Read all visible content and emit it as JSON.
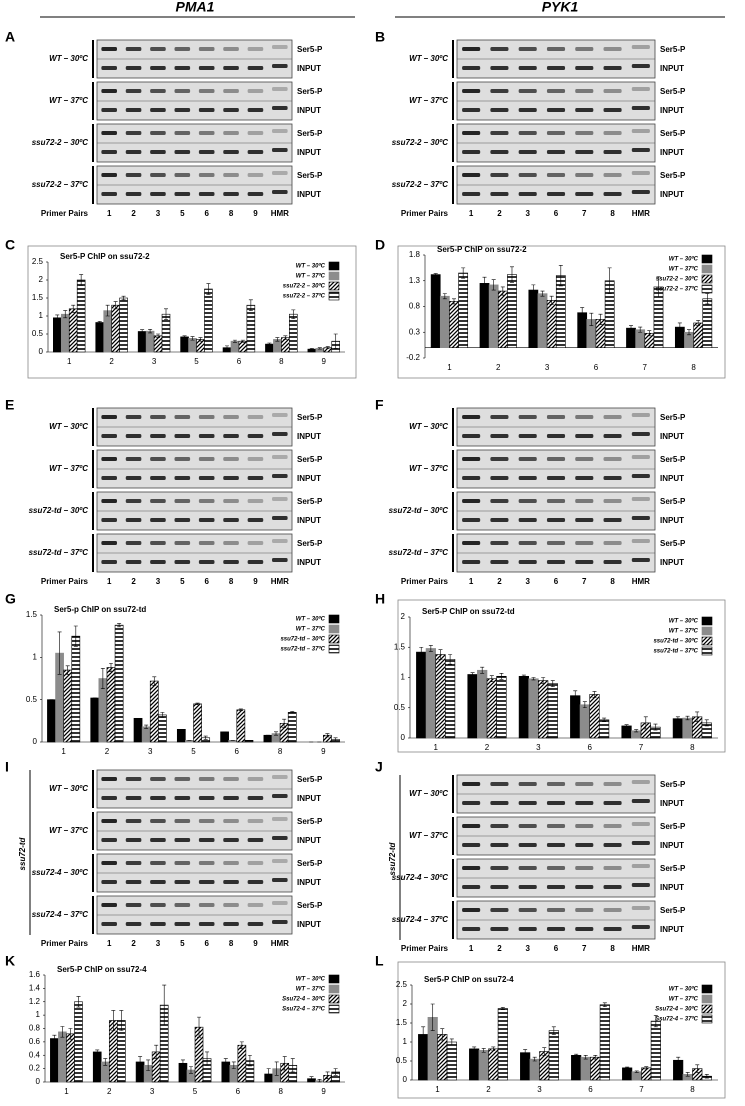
{
  "headers": [
    "PMA1",
    "PYK1"
  ],
  "gels": [
    {
      "letter": "A",
      "primer_label": "Primer Pairs",
      "lanes": [
        "1",
        "2",
        "3",
        "5",
        "6",
        "8",
        "9",
        "HMR"
      ],
      "blocks": [
        {
          "strain": "WT – 30ºC",
          "rows": [
            "Ser5-P",
            "INPUT"
          ]
        },
        {
          "strain": "WT – 37ºC",
          "rows": [
            "Ser5-P",
            "INPUT"
          ]
        },
        {
          "strain": "ssu72-2 – 30ºC",
          "rows": [
            "Ser5-P",
            "INPUT"
          ]
        },
        {
          "strain": "ssu72-2 – 37ºC",
          "rows": [
            "Ser5-P",
            "INPUT"
          ]
        }
      ]
    },
    {
      "letter": "B",
      "primer_label": "Primer Pairs",
      "lanes": [
        "1",
        "2",
        "3",
        "6",
        "7",
        "8",
        "HMR"
      ],
      "blocks": [
        {
          "strain": "WT – 30ºC",
          "rows": [
            "Ser5-P",
            "INPUT"
          ]
        },
        {
          "strain": "WT – 37ºC",
          "rows": [
            "Ser5-P",
            "INPUT"
          ]
        },
        {
          "strain": "ssu72-2 – 30ºC",
          "rows": [
            "Ser5-P",
            "INPUT"
          ]
        },
        {
          "strain": "ssu72-2 – 37ºC",
          "rows": [
            "Ser5-P",
            "INPUT"
          ]
        }
      ]
    },
    {
      "letter": "E",
      "primer_label": "Primer Pairs",
      "lanes": [
        "1",
        "2",
        "3",
        "5",
        "6",
        "8",
        "9",
        "HMR"
      ],
      "blocks": [
        {
          "strain": "WT – 30ºC",
          "rows": [
            "Ser5-P",
            "INPUT"
          ]
        },
        {
          "strain": "WT – 37ºC",
          "rows": [
            "Ser5-P",
            "INPUT"
          ]
        },
        {
          "strain": "ssu72-td – 30ºC",
          "rows": [
            "Ser5-P",
            "INPUT"
          ]
        },
        {
          "strain": "ssu72-td – 37ºC",
          "rows": [
            "Ser5-P",
            "INPUT"
          ]
        }
      ]
    },
    {
      "letter": "F",
      "primer_label": "Primer Pairs",
      "lanes": [
        "1",
        "2",
        "3",
        "6",
        "7",
        "8",
        "HMR"
      ],
      "blocks": [
        {
          "strain": "WT – 30ºC",
          "rows": [
            "Ser5-P",
            "INPUT"
          ]
        },
        {
          "strain": "WT – 37ºC",
          "rows": [
            "Ser5-P",
            "INPUT"
          ]
        },
        {
          "strain": "ssu72-td – 30ºC",
          "rows": [
            "Ser5-P",
            "INPUT"
          ]
        },
        {
          "strain": "ssu72-td – 37ºC",
          "rows": [
            "Ser5-P",
            "INPUT"
          ]
        }
      ]
    },
    {
      "letter": "I",
      "side_label": "ssu72-td",
      "primer_label": "Primer Pairs",
      "lanes": [
        "1",
        "2",
        "3",
        "5",
        "6",
        "8",
        "9",
        "HMR"
      ],
      "blocks": [
        {
          "strain": "WT – 30ºC",
          "rows": [
            "Ser5-P",
            "INPUT"
          ]
        },
        {
          "strain": "WT – 37ºC",
          "rows": [
            "Ser5-P",
            "INPUT"
          ]
        },
        {
          "strain": "ssu72-4 – 30ºC",
          "rows": [
            "Ser5-P",
            "INPUT"
          ]
        },
        {
          "strain": "ssu72-4 – 37ºC",
          "rows": [
            "Ser5-P",
            "INPUT"
          ]
        }
      ]
    },
    {
      "letter": "J",
      "side_label": "ssu72-td",
      "primer_label": "Primer Pairs",
      "lanes": [
        "1",
        "2",
        "3",
        "6",
        "7",
        "8",
        "HMR"
      ],
      "blocks": [
        {
          "strain": "WT – 30ºC",
          "rows": [
            "Ser5-P",
            "INPUT"
          ]
        },
        {
          "strain": "WT – 37ºC",
          "rows": [
            "Ser5-P",
            "INPUT"
          ]
        },
        {
          "strain": "ssu72-4 – 30ºC",
          "rows": [
            "Ser5-P",
            "INPUT"
          ]
        },
        {
          "strain": "ssu72-4 – 37ºC",
          "rows": [
            "Ser5-P",
            "INPUT"
          ]
        }
      ]
    }
  ],
  "chart_data": [
    {
      "type": "bar",
      "panel": "C",
      "title": "Ser5-P ChIP on ssu72-2",
      "categories": [
        "1",
        "2",
        "3",
        "5",
        "6",
        "8",
        "9"
      ],
      "ylim": [
        0,
        2.5
      ],
      "yticks": [
        0,
        0.5,
        1,
        1.5,
        2,
        2.5
      ],
      "series": [
        {
          "name": "WT – 30ºC",
          "color": "#000000",
          "values": [
            0.95,
            0.82,
            0.57,
            0.42,
            0.12,
            0.22,
            0.08
          ],
          "errors": [
            0.08,
            0.03,
            0.05,
            0.03,
            0.05,
            0.03,
            0.02
          ]
        },
        {
          "name": "WT – 37ºC",
          "color": "#8c8c8c",
          "values": [
            1.05,
            1.15,
            0.58,
            0.38,
            0.3,
            0.35,
            0.1
          ],
          "errors": [
            0.1,
            0.15,
            0.05,
            0.05,
            0.03,
            0.05,
            0.02
          ]
        },
        {
          "name": "ssu72-2 – 30ºC",
          "color": "#000000",
          "pattern": "diagonal",
          "values": [
            1.2,
            1.3,
            0.45,
            0.35,
            0.3,
            0.4,
            0.12
          ],
          "errors": [
            0.1,
            0.1,
            0.05,
            0.05,
            0.03,
            0.05,
            0.03
          ]
        },
        {
          "name": "ssu72-2 – 37ºC",
          "color": "#000000",
          "pattern": "horizontal",
          "values": [
            2.0,
            1.5,
            1.05,
            1.75,
            1.3,
            1.05,
            0.3
          ],
          "errors": [
            0.15,
            0.05,
            0.15,
            0.15,
            0.15,
            0.12,
            0.2
          ]
        }
      ]
    },
    {
      "type": "bar",
      "panel": "D",
      "title": "Ser5-P ChIP on ssu72-2",
      "categories": [
        "1",
        "2",
        "3",
        "6",
        "7",
        "8"
      ],
      "ylim": [
        -0.2,
        1.8
      ],
      "yticks": [
        -0.2,
        0.3,
        0.8,
        1.3,
        1.8
      ],
      "series": [
        {
          "name": "WT – 30ºC",
          "color": "#000000",
          "values": [
            1.42,
            1.25,
            1.12,
            0.68,
            0.38,
            0.4
          ],
          "errors": [
            0.02,
            0.12,
            0.1,
            0.1,
            0.05,
            0.08
          ]
        },
        {
          "name": "WT – 37ºC",
          "color": "#8c8c8c",
          "values": [
            1.0,
            1.22,
            1.05,
            0.55,
            0.35,
            0.3
          ],
          "errors": [
            0.05,
            0.1,
            0.05,
            0.12,
            0.05,
            0.05
          ]
        },
        {
          "name": "ssu72-2 – 30ºC",
          "color": "#000000",
          "pattern": "diagonal",
          "values": [
            0.9,
            1.1,
            0.92,
            0.55,
            0.28,
            0.48
          ],
          "errors": [
            0.05,
            0.08,
            0.08,
            0.1,
            0.05,
            0.05
          ]
        },
        {
          "name": "ssu72-2 – 37ºC",
          "color": "#000000",
          "pattern": "horizontal",
          "values": [
            1.45,
            1.42,
            1.4,
            1.3,
            1.18,
            0.95
          ],
          "errors": [
            0.1,
            0.15,
            0.2,
            0.25,
            0.2,
            0.1
          ]
        }
      ]
    },
    {
      "type": "bar",
      "panel": "G",
      "title": "Ser5-p ChIP on ssu72-td",
      "categories": [
        "1",
        "2",
        "3",
        "5",
        "6",
        "8",
        "9"
      ],
      "ylim": [
        0,
        1.5
      ],
      "yticks": [
        0,
        0.5,
        1,
        1.5
      ],
      "series": [
        {
          "name": "WT – 30ºC",
          "color": "#000000",
          "values": [
            0.5,
            0.52,
            0.28,
            0.15,
            0.12,
            0.08,
            0
          ],
          "errors": [
            0,
            0,
            0,
            0,
            0,
            0,
            0
          ]
        },
        {
          "name": "WT – 37ºC",
          "color": "#8c8c8c",
          "values": [
            1.05,
            0.75,
            0.18,
            0.02,
            0.02,
            0.1,
            0
          ],
          "errors": [
            0.25,
            0.12,
            0.02,
            0,
            0,
            0.02,
            0
          ]
        },
        {
          "name": "ssu72-td – 30ºC",
          "color": "#000000",
          "pattern": "diagonal",
          "values": [
            0.85,
            0.88,
            0.72,
            0.45,
            0.38,
            0.22,
            0.08
          ],
          "errors": [
            0.05,
            0.05,
            0.05,
            0.01,
            0.01,
            0.05,
            0.02
          ]
        },
        {
          "name": "ssu72-td – 37ºC",
          "color": "#000000",
          "pattern": "horizontal",
          "values": [
            1.25,
            1.38,
            0.32,
            0.05,
            0.02,
            0.35,
            0.03
          ],
          "errors": [
            0.12,
            0.02,
            0.03,
            0.02,
            0,
            0.01,
            0.02
          ]
        }
      ]
    },
    {
      "type": "bar",
      "panel": "H",
      "title": "Ser5-P ChIP on ssu72-td",
      "categories": [
        "1",
        "2",
        "3",
        "6",
        "7",
        "8"
      ],
      "ylim": [
        0,
        2
      ],
      "yticks": [
        0,
        0.5,
        1,
        1.5,
        2
      ],
      "series": [
        {
          "name": "WT – 30ºC",
          "color": "#000000",
          "values": [
            1.42,
            1.05,
            1.02,
            0.7,
            0.2,
            0.32
          ],
          "errors": [
            0.08,
            0.03,
            0.02,
            0.08,
            0.02,
            0.03
          ]
        },
        {
          "name": "WT – 37ºC",
          "color": "#8c8c8c",
          "values": [
            1.48,
            1.12,
            0.98,
            0.55,
            0.12,
            0.33
          ],
          "errors": [
            0.05,
            0.05,
            0.02,
            0.05,
            0.02,
            0.03
          ]
        },
        {
          "name": "ssu72-td – 30ºC",
          "color": "#000000",
          "pattern": "diagonal",
          "values": [
            1.38,
            0.98,
            0.95,
            0.72,
            0.25,
            0.35
          ],
          "errors": [
            0.08,
            0.05,
            0.05,
            0.05,
            0.1,
            0.08
          ]
        },
        {
          "name": "ssu72-td – 37ºC",
          "color": "#000000",
          "pattern": "horizontal",
          "values": [
            1.3,
            1.02,
            0.9,
            0.3,
            0.18,
            0.25
          ],
          "errors": [
            0.08,
            0.05,
            0.05,
            0.03,
            0.05,
            0.05
          ]
        }
      ]
    },
    {
      "type": "bar",
      "panel": "K",
      "title": "Ser5-P ChIP on ssu72-4",
      "categories": [
        "1",
        "2",
        "3",
        "5",
        "6",
        "8",
        "9"
      ],
      "ylim": [
        0,
        1.6
      ],
      "yticks": [
        0,
        0.2,
        0.4,
        0.6,
        0.8,
        1,
        1.2,
        1.4,
        1.6
      ],
      "series": [
        {
          "name": "WT – 30ºC",
          "color": "#000000",
          "values": [
            0.65,
            0.45,
            0.3,
            0.28,
            0.3,
            0.12,
            0.05
          ],
          "errors": [
            0.05,
            0.03,
            0.08,
            0.05,
            0.05,
            0.08,
            0.03
          ]
        },
        {
          "name": "WT – 37ºC",
          "color": "#8c8c8c",
          "values": [
            0.75,
            0.3,
            0.25,
            0.18,
            0.25,
            0.2,
            0.02
          ],
          "errors": [
            0.08,
            0.05,
            0.08,
            0.05,
            0.05,
            0.1,
            0.02
          ]
        },
        {
          "name": "Ssu72-4 – 30ºC",
          "color": "#000000",
          "pattern": "diagonal",
          "values": [
            0.72,
            0.92,
            0.45,
            0.82,
            0.55,
            0.28,
            0.1
          ],
          "errors": [
            0.08,
            0.15,
            0.1,
            0.15,
            0.05,
            0.1,
            0.05
          ]
        },
        {
          "name": "Ssu72-4 – 37ºC",
          "color": "#000000",
          "pattern": "horizontal",
          "values": [
            1.2,
            0.92,
            1.15,
            0.35,
            0.32,
            0.25,
            0.15
          ],
          "errors": [
            0.08,
            0.15,
            0.3,
            0.1,
            0.08,
            0.1,
            0.05
          ]
        }
      ]
    },
    {
      "type": "bar",
      "panel": "L",
      "title": "Ser5-P ChIP on ssu72-4",
      "categories": [
        "1",
        "2",
        "3",
        "6",
        "7",
        "8"
      ],
      "ylim": [
        0,
        2.5
      ],
      "yticks": [
        0,
        0.5,
        1,
        1.5,
        2,
        2.5
      ],
      "series": [
        {
          "name": "WT – 30ºC",
          "color": "#000000",
          "values": [
            1.2,
            0.82,
            0.72,
            0.65,
            0.32,
            0.52
          ],
          "errors": [
            0.2,
            0.05,
            0.08,
            0.03,
            0.02,
            0.08
          ]
        },
        {
          "name": "WT – 37ºC",
          "color": "#8c8c8c",
          "values": [
            1.65,
            0.78,
            0.55,
            0.6,
            0.22,
            0.15
          ],
          "errors": [
            0.35,
            0.05,
            0.05,
            0.05,
            0.02,
            0.05
          ]
        },
        {
          "name": "Ssu72-4 – 30ºC",
          "color": "#000000",
          "pattern": "diagonal",
          "values": [
            1.2,
            0.82,
            0.75,
            0.6,
            0.32,
            0.3
          ],
          "errors": [
            0.15,
            0.05,
            0.1,
            0.05,
            0.03,
            0.1
          ]
        },
        {
          "name": "Ssu72-4 – 37ºC",
          "color": "#000000",
          "pattern": "horizontal",
          "values": [
            1.0,
            1.88,
            1.3,
            1.98,
            1.55,
            0.1
          ],
          "errors": [
            0.08,
            0.03,
            0.1,
            0.05,
            0.15,
            0.05
          ]
        }
      ]
    }
  ]
}
